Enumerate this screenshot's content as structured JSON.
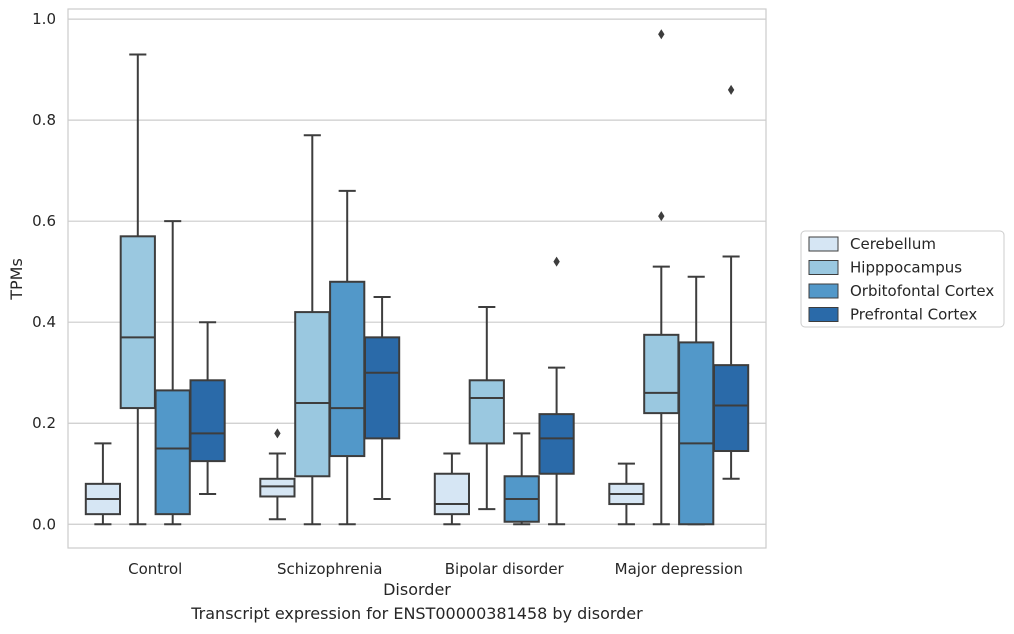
{
  "caption": "Transcript expression for ENST00000381458 by disorder",
  "chart_data": {
    "type": "box",
    "xlabel": "Disorder",
    "ylabel": "TPMs",
    "ylim": [
      -0.047,
      1.02
    ],
    "yticks": [
      0.0,
      0.2,
      0.4,
      0.6,
      0.8,
      1.0
    ],
    "ytick_labels": [
      "0.0",
      "0.2",
      "0.4",
      "0.6",
      "0.8",
      "1.0"
    ],
    "grid": "horizontal",
    "legend_position": "right",
    "categories": [
      "Control",
      "Schizophrenia",
      "Bipolar disorder",
      "Major depression"
    ],
    "series": [
      {
        "name": "Cerebellum",
        "color": "#d6e6f4",
        "boxes": [
          {
            "whislo": 0.0,
            "q1": 0.02,
            "med": 0.05,
            "q3": 0.08,
            "whishi": 0.16,
            "fliers": []
          },
          {
            "whislo": 0.01,
            "q1": 0.055,
            "med": 0.075,
            "q3": 0.09,
            "whishi": 0.14,
            "fliers": [
              0.18
            ]
          },
          {
            "whislo": 0.0,
            "q1": 0.02,
            "med": 0.04,
            "q3": 0.1,
            "whishi": 0.14,
            "fliers": []
          },
          {
            "whislo": 0.0,
            "q1": 0.04,
            "med": 0.06,
            "q3": 0.08,
            "whishi": 0.12,
            "fliers": []
          }
        ]
      },
      {
        "name": "Hipppocampus",
        "color": "#9ac8e0",
        "boxes": [
          {
            "whislo": 0.0,
            "q1": 0.23,
            "med": 0.37,
            "q3": 0.57,
            "whishi": 0.93,
            "fliers": []
          },
          {
            "whislo": 0.0,
            "q1": 0.095,
            "med": 0.24,
            "q3": 0.42,
            "whishi": 0.77,
            "fliers": []
          },
          {
            "whislo": 0.03,
            "q1": 0.16,
            "med": 0.25,
            "q3": 0.285,
            "whishi": 0.43,
            "fliers": []
          },
          {
            "whislo": 0.0,
            "q1": 0.22,
            "med": 0.26,
            "q3": 0.375,
            "whishi": 0.51,
            "fliers": [
              0.61,
              0.97
            ]
          }
        ]
      },
      {
        "name": "Orbitofontal Cortex",
        "color": "#5298c9",
        "boxes": [
          {
            "whislo": 0.0,
            "q1": 0.02,
            "med": 0.15,
            "q3": 0.265,
            "whishi": 0.6,
            "fliers": []
          },
          {
            "whislo": 0.0,
            "q1": 0.135,
            "med": 0.23,
            "q3": 0.48,
            "whishi": 0.66,
            "fliers": []
          },
          {
            "whislo": 0.0,
            "q1": 0.005,
            "med": 0.05,
            "q3": 0.095,
            "whishi": 0.18,
            "fliers": []
          },
          {
            "whislo": 0.0,
            "q1": 0.0,
            "med": 0.16,
            "q3": 0.36,
            "whishi": 0.49,
            "fliers": []
          }
        ]
      },
      {
        "name": "Prefrontal Cortex",
        "color": "#2a6aa9",
        "boxes": [
          {
            "whislo": 0.06,
            "q1": 0.125,
            "med": 0.18,
            "q3": 0.285,
            "whishi": 0.4,
            "fliers": []
          },
          {
            "whislo": 0.05,
            "q1": 0.17,
            "med": 0.3,
            "q3": 0.37,
            "whishi": 0.45,
            "fliers": []
          },
          {
            "whislo": 0.0,
            "q1": 0.1,
            "med": 0.17,
            "q3": 0.218,
            "whishi": 0.31,
            "fliers": [
              0.52
            ]
          },
          {
            "whislo": 0.09,
            "q1": 0.145,
            "med": 0.235,
            "q3": 0.315,
            "whishi": 0.53,
            "fliers": [
              0.86
            ]
          }
        ]
      }
    ]
  }
}
